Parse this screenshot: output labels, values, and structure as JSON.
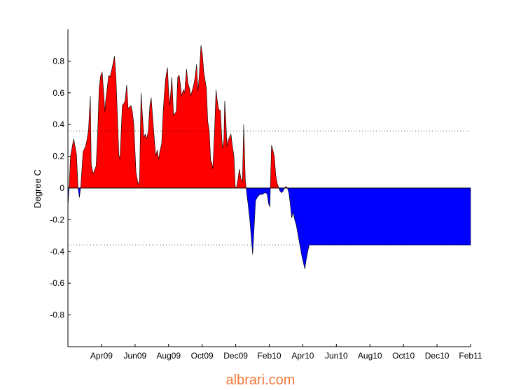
{
  "chart_data": {
    "type": "area",
    "ylabel": "Degree C",
    "xlabel": "",
    "title": "",
    "ylim": [
      -1.0,
      1.0
    ],
    "yticks": [
      -0.8,
      -0.6,
      -0.4,
      -0.2,
      0,
      0.2,
      0.4,
      0.6,
      0.8
    ],
    "xlim": [
      2009.0833,
      2011.0833
    ],
    "xticks": [
      {
        "label": "Apr09",
        "x": 2009.25
      },
      {
        "label": "Jun09",
        "x": 2009.4167
      },
      {
        "label": "Aug09",
        "x": 2009.5833
      },
      {
        "label": "Oct09",
        "x": 2009.75
      },
      {
        "label": "Dec09",
        "x": 2009.9167
      },
      {
        "label": "Feb10",
        "x": 2010.0833
      },
      {
        "label": "Apr10",
        "x": 2010.25
      },
      {
        "label": "Jun10",
        "x": 2010.4167
      },
      {
        "label": "Aug10",
        "x": 2010.5833
      },
      {
        "label": "Oct10",
        "x": 2010.75
      },
      {
        "label": "Dec10",
        "x": 2010.9167
      },
      {
        "label": "Feb11",
        "x": 2011.0833
      }
    ],
    "threshold_lines": [
      0.36,
      -0.36
    ],
    "grid": false,
    "positive_color": "#ff0000",
    "negative_color": "#0000ff",
    "series": [
      {
        "x": [
          2009.0833,
          2009.0888,
          2009.0963,
          2009.1117,
          2009.1261,
          2009.1333,
          2009.1405,
          2009.1477,
          2009.1588,
          2009.1704,
          2009.1773,
          2009.1851,
          2009.1945,
          2009.1993,
          2009.2083,
          2009.2149,
          2009.2233,
          2009.2311,
          2009.2384,
          2009.2461,
          2009.2539,
          2009.2606,
          2009.2673,
          2009.2707,
          2009.2756,
          2009.2856,
          2009.2928,
          2009.3001,
          2009.3145,
          2009.3223,
          2009.3362,
          2009.3417,
          2009.3535,
          2009.3601,
          2009.3674,
          2009.3752,
          2009.3825,
          2009.3964,
          2009.4036,
          2009.4107,
          2009.4214,
          2009.4322,
          2009.4392,
          2009.4464,
          2009.4603,
          2009.4681,
          2009.4754,
          2009.4825,
          2009.4903,
          2009.4967,
          2009.5071,
          2009.5195,
          2009.5268,
          2009.5345,
          2009.5401,
          2009.5489,
          2009.5562,
          2009.5608,
          2009.5684,
          2009.578,
          2009.5836,
          2009.5902,
          2009.594,
          2009.5996,
          2009.6079,
          2009.6213,
          2009.6291,
          2009.636,
          2009.6412,
          2009.6478,
          2009.6568,
          2009.6627,
          2009.6724,
          2009.6795,
          2009.6868,
          2009.6935,
          2009.7081,
          2009.7152,
          2009.7224,
          2009.7296,
          2009.7362,
          2009.744,
          2009.7514,
          2009.758,
          2009.7708,
          2009.7779,
          2009.7852,
          2009.7924,
          2009.798,
          2009.8029,
          2009.8115,
          2009.8189,
          2009.8251,
          2009.8311,
          2009.8365,
          2009.8403,
          2009.8505,
          2009.8578,
          2009.8622,
          2009.8687,
          2009.8734,
          2009.8785,
          2009.8931,
          2009.8997,
          2009.908,
          2009.9141,
          2009.9206,
          2009.9285,
          2009.9349,
          2009.9426,
          2009.95,
          2009.9565,
          2009.9642,
          2009.972,
          2009.9778,
          2009.9867,
          2009.9933,
          2010.0007,
          2010.0083,
          2010.0151,
          2010.0231,
          2010.0302,
          2010.0366,
          2010.0442,
          2010.0514,
          2010.0586,
          2010.0659,
          2010.0733,
          2010.08,
          2010.0862,
          2010.0944,
          2010.1012,
          2010.1084,
          2010.1156,
          2010.1227,
          2010.1301,
          2010.1373,
          2010.1445,
          2010.1516,
          2010.159,
          2010.1662,
          2010.1734,
          2010.1807,
          2010.1878,
          2010.195,
          2010.2022,
          2010.2095,
          2010.2167,
          2010.2241,
          2010.2311,
          2010.2383,
          2010.2455,
          2010.2528,
          2010.2601,
          2010.2673,
          2010.2745,
          2010.2816,
          2010.2889,
          2010.2961,
          2010.3034,
          2010.3106,
          2010.3178,
          2010.3249,
          2010.3322,
          2010.3394,
          2010.3467,
          2010.3539,
          2010.361,
          2010.3683,
          2010.3755,
          2010.3827,
          2010.3899,
          2010.3972,
          2010.4044,
          2010.4115,
          2010.4188,
          2010.426,
          2010.4332,
          2010.4404,
          2010.4477,
          2010.4549,
          2010.4621,
          2010.4693,
          2010.4765,
          2010.4837,
          2010.491,
          2010.4982,
          2010.5054,
          2010.5126,
          2010.5198,
          2010.527,
          2010.5343,
          2010.5415,
          2010.5487,
          2010.5559,
          2010.5631,
          2010.5703,
          2010.5776,
          2010.5848,
          2010.592,
          2010.5992,
          2010.6064,
          2010.6136,
          2010.6208,
          2010.6281,
          2010.6353,
          2010.6425,
          2010.6497,
          2010.6569,
          2010.6641,
          2010.6714,
          2010.6786,
          2010.6858,
          2010.693,
          2010.7002,
          2010.7074,
          2010.7147,
          2010.7219,
          2010.7291,
          2010.7363,
          2010.7435,
          2010.7507,
          2010.758,
          2010.7652,
          2010.7724,
          2010.7796,
          2010.7868,
          2010.794,
          2010.8012,
          2010.8085,
          2010.8157,
          2010.8229,
          2010.8301,
          2010.8373,
          2010.8445,
          2010.8518,
          2010.859,
          2010.8662,
          2010.8734,
          2010.8806,
          2010.8878,
          2010.8951,
          2010.9023,
          2010.9095,
          2010.9167,
          2010.9239,
          2010.9311,
          2010.9384,
          2010.9456,
          2010.9528,
          2010.96,
          2010.9672,
          2010.9744,
          2010.9817,
          2010.9889,
          2010.9961,
          2011.0033,
          2011.0105,
          2011.0177,
          2011.025,
          2011.0322,
          2011.0394,
          2011.0466,
          2011.0538,
          2011.061,
          2011.0683,
          2011.0755,
          2011.0833
        ],
        "values": [
          -0.12,
          0.0,
          0.2,
          0.31,
          0.21,
          0.0,
          -0.06,
          0.02,
          0.23,
          0.26,
          0.3,
          0.36,
          0.58,
          0.15,
          0.09,
          0.11,
          0.14,
          0.35,
          0.63,
          0.71,
          0.73,
          0.6,
          0.48,
          0.55,
          0.6,
          0.71,
          0.7,
          0.74,
          0.83,
          0.69,
          0.21,
          0.18,
          0.52,
          0.53,
          0.55,
          0.65,
          0.5,
          0.52,
          0.48,
          0.4,
          0.1,
          0.02,
          0.05,
          0.6,
          0.32,
          0.34,
          0.31,
          0.36,
          0.52,
          0.57,
          0.4,
          0.2,
          0.24,
          0.18,
          0.23,
          0.28,
          0.48,
          0.57,
          0.69,
          0.76,
          0.6,
          0.52,
          0.6,
          0.7,
          0.46,
          0.48,
          0.7,
          0.71,
          0.66,
          0.58,
          0.62,
          0.6,
          0.75,
          0.66,
          0.63,
          0.58,
          0.65,
          0.7,
          0.78,
          0.61,
          0.72,
          0.9,
          0.84,
          0.73,
          0.63,
          0.42,
          0.36,
          0.17,
          0.16,
          0.12,
          0.36,
          0.62,
          0.55,
          0.5,
          0.49,
          0.49,
          0.25,
          0.3,
          0.55,
          0.4,
          0.26,
          0.3,
          0.34,
          0.27,
          0.2,
          0.01,
          0.0,
          0.06,
          0.12,
          0.06,
          0.04,
          0.4,
          0.05,
          -0.04,
          -0.1,
          -0.2,
          -0.3,
          -0.42,
          -0.25,
          -0.08,
          -0.06,
          -0.05,
          -0.04,
          -0.04,
          -0.04,
          -0.03,
          -0.03,
          -0.04,
          -0.1,
          -0.12,
          0.27,
          0.24,
          0.2,
          0.08,
          0.03,
          0.0,
          -0.02,
          -0.03,
          -0.02,
          0.0,
          0.01,
          0.0,
          -0.03,
          -0.1,
          -0.19,
          -0.15,
          -0.2,
          -0.23,
          -0.28,
          -0.33,
          -0.38,
          -0.43,
          -0.47,
          -0.51,
          -0.45,
          -0.4,
          -0.36,
          -0.36,
          -0.36,
          -0.36,
          -0.36,
          -0.36,
          -0.36,
          -0.36,
          -0.36,
          -0.36,
          -0.36,
          -0.36,
          -0.36,
          -0.36,
          -0.36,
          -0.36,
          -0.36,
          -0.36,
          -0.36,
          -0.36,
          -0.36,
          -0.36,
          -0.36,
          -0.36,
          -0.36,
          -0.36,
          -0.36,
          -0.36,
          -0.36,
          -0.36,
          -0.36,
          -0.36,
          -0.36,
          -0.36,
          -0.36,
          -0.36,
          -0.36,
          -0.36,
          -0.36,
          -0.36,
          -0.36,
          -0.36,
          -0.36,
          -0.36,
          -0.36,
          -0.36,
          -0.36,
          -0.36,
          -0.36,
          -0.36,
          -0.36,
          -0.36,
          -0.36,
          -0.36,
          -0.36,
          -0.36,
          -0.36,
          -0.36,
          -0.36,
          -0.36,
          -0.36,
          -0.36,
          -0.36,
          -0.36,
          -0.36,
          -0.36,
          -0.36,
          -0.36,
          -0.36,
          -0.36,
          -0.36,
          -0.36,
          -0.36,
          -0.36,
          -0.36,
          -0.36,
          -0.36,
          -0.36,
          -0.36,
          -0.36,
          -0.36,
          -0.36,
          -0.36,
          -0.36,
          -0.36,
          -0.36,
          -0.36,
          -0.36,
          -0.36,
          -0.36,
          -0.36,
          -0.36,
          -0.36,
          -0.36,
          -0.36,
          -0.36,
          -0.36,
          -0.36,
          -0.36,
          -0.36,
          -0.36,
          -0.36,
          -0.36,
          -0.36,
          -0.36,
          -0.36,
          -0.36,
          -0.36,
          -0.36,
          -0.36,
          -0.36,
          -0.36
        ]
      }
    ]
  },
  "watermark": "albrari.com"
}
